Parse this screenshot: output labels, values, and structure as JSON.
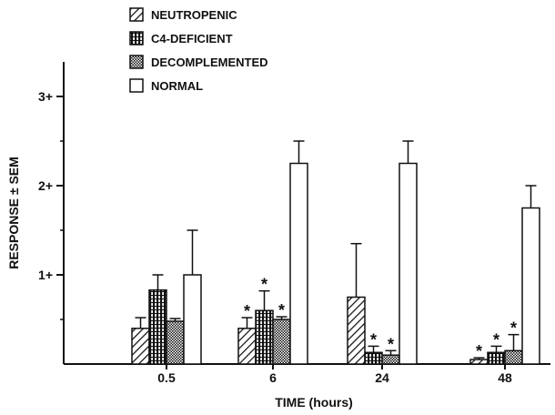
{
  "chart_data": {
    "type": "bar",
    "title": "",
    "xlabel": "TIME (hours)",
    "ylabel": "RESPONSE ± SEM",
    "ylim": [
      0,
      3.5
    ],
    "yticks": [
      {
        "value": 1,
        "label": "1+"
      },
      {
        "value": 2,
        "label": "2+"
      },
      {
        "value": 3,
        "label": "3+"
      }
    ],
    "categories": [
      "0.5",
      "6",
      "24",
      "48"
    ],
    "legend_position": "top-left",
    "series": [
      {
        "name": "NEUTROPENIC",
        "pattern": "diagonal-hatch",
        "values": [
          0.4,
          0.4,
          0.75,
          0.05
        ],
        "errors": [
          0.12,
          0.12,
          0.6,
          0.02
        ],
        "significant": [
          false,
          true,
          false,
          true
        ]
      },
      {
        "name": "C4-DEFICIENT",
        "pattern": "vertical-stripe",
        "values": [
          0.83,
          0.6,
          0.13,
          0.13
        ],
        "errors": [
          0.17,
          0.22,
          0.07,
          0.07
        ],
        "significant": [
          false,
          true,
          true,
          true
        ]
      },
      {
        "name": "DECOMPLEMENTED",
        "pattern": "crosshatch",
        "values": [
          0.48,
          0.5,
          0.1,
          0.15
        ],
        "errors": [
          0.03,
          0.03,
          0.05,
          0.18
        ],
        "significant": [
          false,
          true,
          true,
          true
        ]
      },
      {
        "name": "NORMAL",
        "pattern": "open",
        "values": [
          1.0,
          2.25,
          2.25,
          1.75
        ],
        "errors": [
          0.5,
          0.25,
          0.25,
          0.25
        ],
        "significant": [
          false,
          false,
          false,
          false
        ]
      }
    ],
    "significance_marker": "*"
  }
}
